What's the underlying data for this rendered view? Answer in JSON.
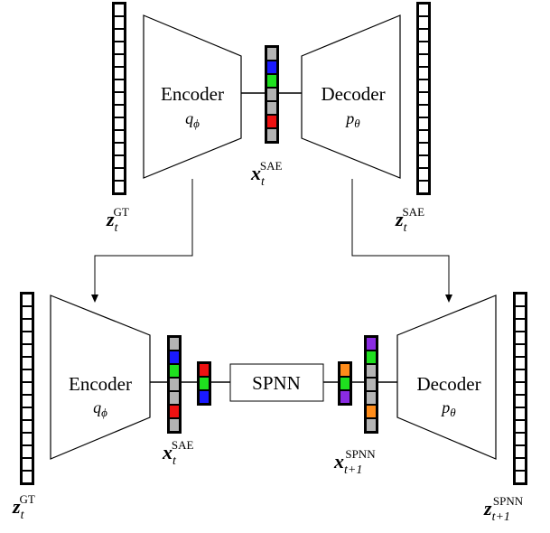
{
  "colors": {
    "gray": "#b4b4b4",
    "blue": "#1a1aff",
    "green": "#1fe01f",
    "red": "#ee1111",
    "orange": "#ff8c1a",
    "purple": "#8a2be2",
    "frame": "#000000",
    "cell_white": "#ffffff"
  },
  "top": {
    "encoder": {
      "title": "Encoder",
      "param": "q",
      "param_sub": "ϕ"
    },
    "decoder": {
      "title": "Decoder",
      "param": "p",
      "param_sub": "θ"
    },
    "latent": {
      "cells": [
        "gray",
        "blue",
        "green",
        "gray",
        "gray",
        "red",
        "gray"
      ],
      "symbol": "x",
      "sub": "t",
      "sup": "SAE"
    },
    "input": {
      "symbol": "z",
      "sub": "t",
      "sup": "GT",
      "cells": 15
    },
    "output": {
      "symbol": "z",
      "sub": "t",
      "sup": "SAE",
      "cells": 15
    }
  },
  "bottom": {
    "encoder": {
      "title": "Encoder",
      "param": "q",
      "param_sub": "ϕ"
    },
    "decoder": {
      "title": "Decoder",
      "param": "p",
      "param_sub": "θ"
    },
    "spnn": {
      "label": "SPNN"
    },
    "latent_in": {
      "cells": [
        "gray",
        "blue",
        "green",
        "gray",
        "gray",
        "red",
        "gray"
      ],
      "symbol": "x",
      "sub": "t",
      "sup": "SAE"
    },
    "reduced_in": {
      "cells": [
        "red",
        "green",
        "blue"
      ]
    },
    "reduced_out": {
      "cells": [
        "orange",
        "green",
        "purple"
      ]
    },
    "latent_out": {
      "cells": [
        "purple",
        "green",
        "gray",
        "gray",
        "gray",
        "orange",
        "gray"
      ],
      "symbol": "x",
      "sub": "t+1",
      "sup": "SPNN"
    },
    "input": {
      "symbol": "z",
      "sub": "t",
      "sup": "GT",
      "cells": 15
    },
    "output": {
      "symbol": "z",
      "sub": "t+1",
      "sup": "SPNN",
      "cells": 15
    }
  }
}
